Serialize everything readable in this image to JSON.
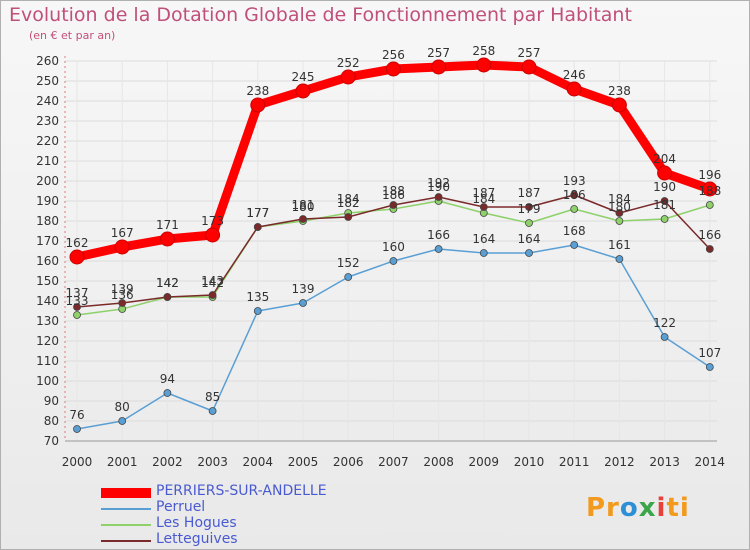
{
  "chart_data": {
    "type": "line",
    "title": "Evolution de la Dotation Globale de Fonctionnement par Habitant",
    "subtitle": "(en € et par an)",
    "xlabel": "",
    "ylabel": "",
    "ylim": [
      70,
      260
    ],
    "ytick_step": 10,
    "categories": [
      "2000",
      "2001",
      "2002",
      "2003",
      "2004",
      "2005",
      "2006",
      "2007",
      "2008",
      "2009",
      "2010",
      "2011",
      "2012",
      "2013",
      "2014"
    ],
    "series": [
      {
        "name": "PERRIERS-SUR-ANDELLE",
        "color": "#ff0000",
        "values": [
          162,
          167,
          171,
          173,
          238,
          245,
          252,
          256,
          257,
          258,
          257,
          246,
          238,
          204,
          196
        ]
      },
      {
        "name": "Perruel",
        "color": "#5a9fd4",
        "values": [
          76,
          80,
          94,
          85,
          135,
          139,
          152,
          160,
          166,
          164,
          164,
          168,
          161,
          122,
          107
        ]
      },
      {
        "name": "Les Hogues",
        "color": "#8ed16b",
        "values": [
          133,
          136,
          142,
          142,
          177,
          180,
          184,
          186,
          190,
          184,
          179,
          186,
          180,
          181,
          188
        ]
      },
      {
        "name": "Letteguives",
        "color": "#7a2a2a",
        "values": [
          137,
          139,
          142,
          143,
          177,
          181,
          182,
          188,
          192,
          187,
          187,
          193,
          184,
          190,
          166
        ]
      }
    ]
  },
  "logo": {
    "p": "Pr",
    "o": "o",
    "x": "x",
    "i": "i",
    "ti": "ti"
  }
}
